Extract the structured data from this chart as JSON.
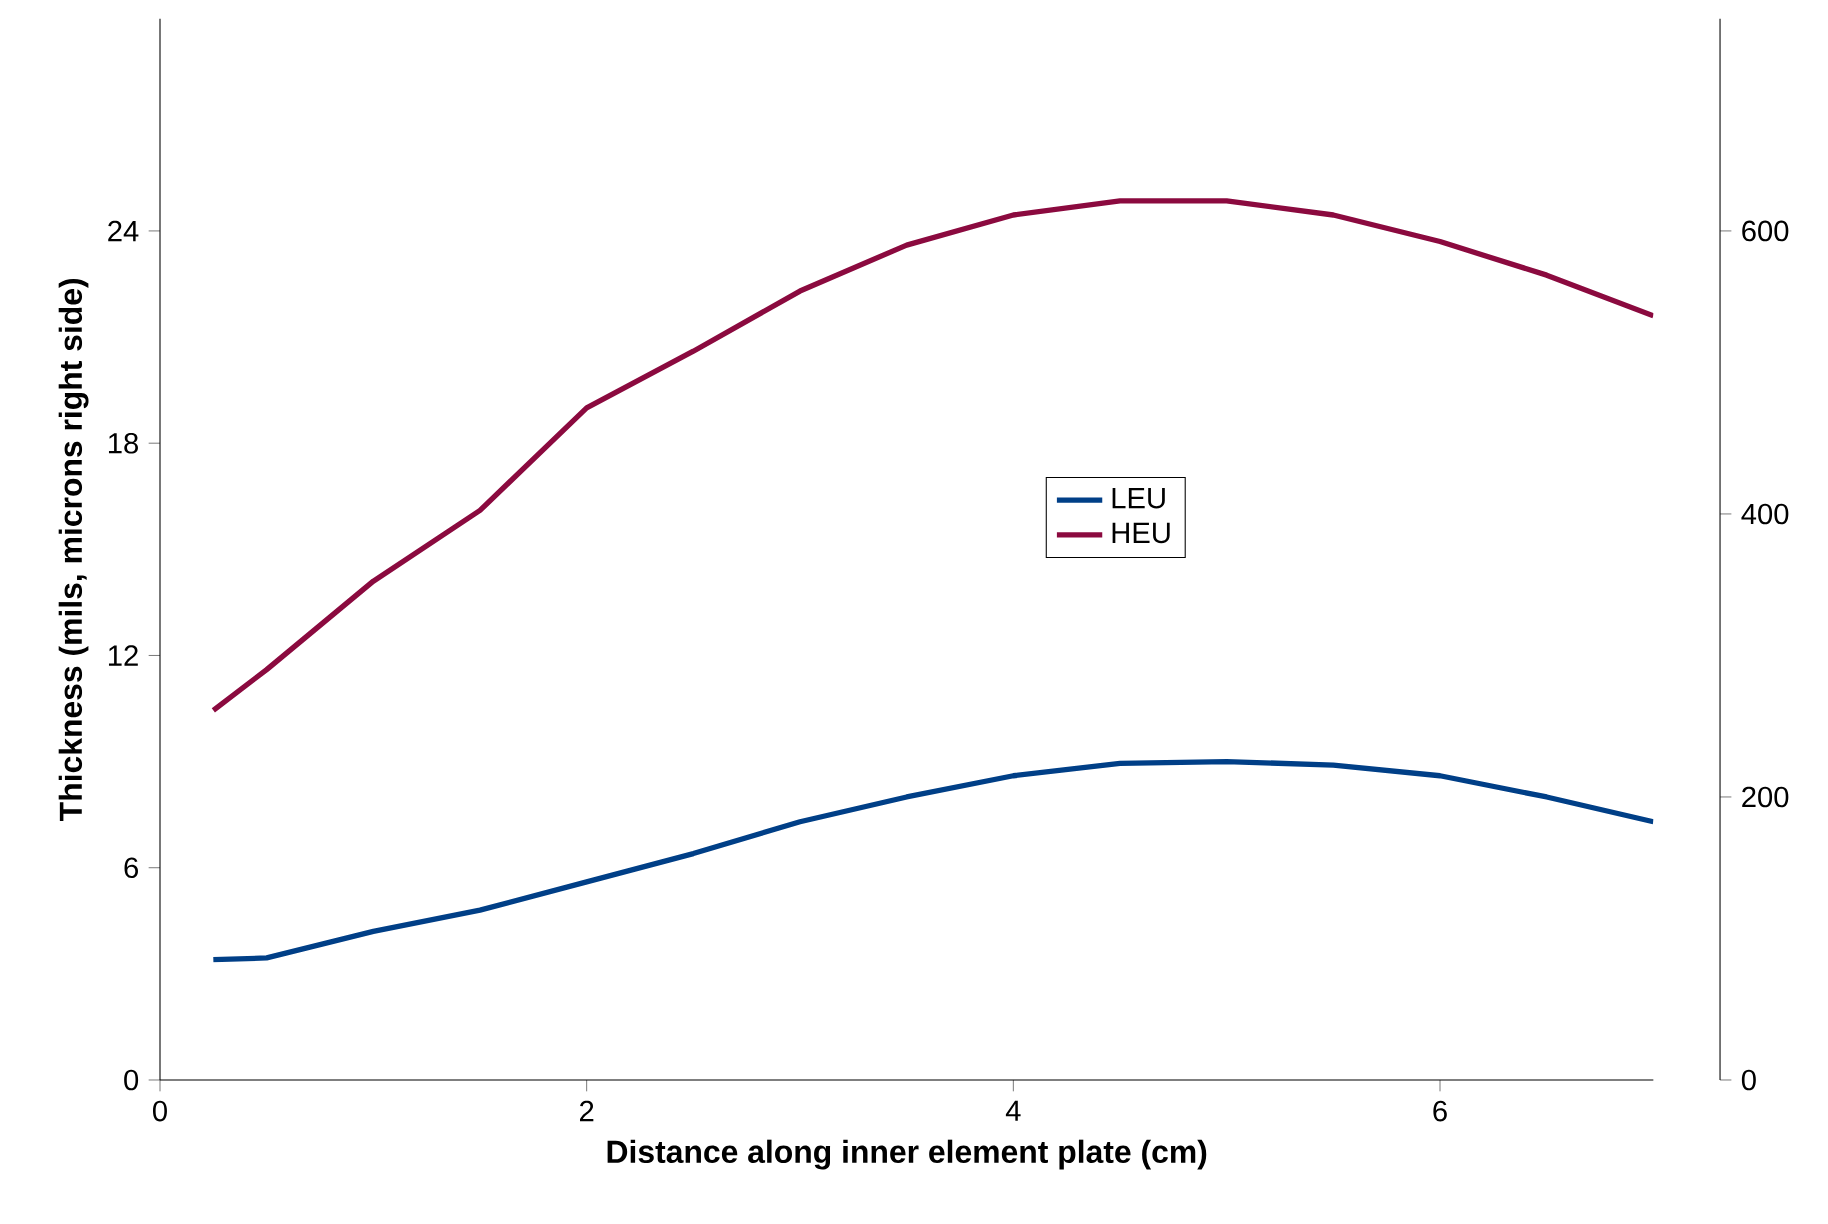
{
  "chart_data": {
    "type": "line",
    "xlabel": "Distance along inner element plate (cm)",
    "ylabel": "Thickness (mils, microns right side)",
    "x": [
      0.25,
      0.5,
      1,
      1.5,
      2,
      2.5,
      3,
      3.5,
      4,
      4.5,
      5,
      5.5,
      6,
      6.5,
      7
    ],
    "series": [
      {
        "name": "LEU",
        "color": "#003f87",
        "values": [
          3.4,
          3.45,
          4.2,
          4.8,
          5.6,
          6.4,
          7.3,
          8.0,
          8.6,
          8.95,
          9.0,
          8.9,
          8.6,
          8.0,
          7.3
        ]
      },
      {
        "name": "HEU",
        "color": "#8b0a3f",
        "values": [
          10.45,
          11.6,
          14.1,
          16.1,
          19.0,
          20.6,
          22.3,
          23.6,
          24.45,
          24.85,
          24.85,
          24.45,
          23.7,
          22.75,
          21.6
        ]
      }
    ],
    "xlim": [
      0,
      7
    ],
    "xticks": [
      0,
      2,
      4,
      6
    ],
    "ylim": [
      0,
      30
    ],
    "yticks": [
      0,
      6,
      12,
      18,
      24
    ],
    "y2lim": [
      0,
      750
    ],
    "y2ticks": [
      0,
      200,
      400,
      600
    ],
    "legend": "center",
    "grid": false,
    "marker": "none",
    "line_style": "solid"
  }
}
